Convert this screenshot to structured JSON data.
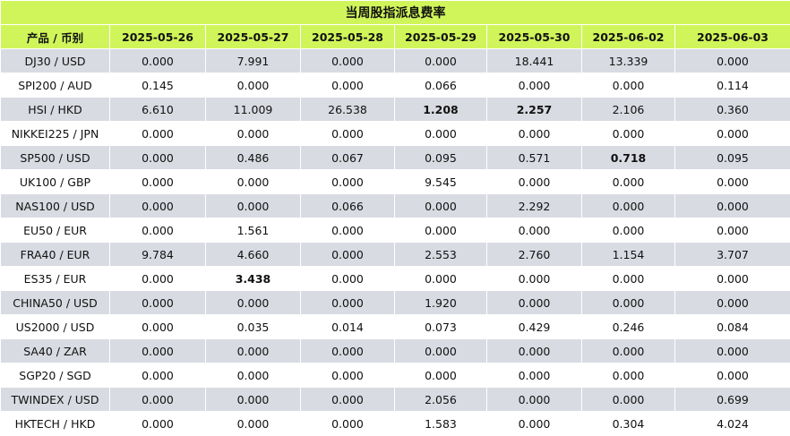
{
  "title": "当周股指派息费率",
  "header": {
    "product": "产品 / 币别",
    "dates": [
      "2025-05-26",
      "2025-05-27",
      "2025-05-28",
      "2025-05-29",
      "2025-05-30",
      "2025-06-02",
      "2025-06-03"
    ]
  },
  "rows": [
    {
      "product": "DJ30 / USD",
      "values": [
        "0.000",
        "7.991",
        "0.000",
        "0.000",
        "18.441",
        "13.339",
        "0.000"
      ],
      "bold": []
    },
    {
      "product": "SPI200 / AUD",
      "values": [
        "0.145",
        "0.000",
        "0.000",
        "0.066",
        "0.000",
        "0.000",
        "0.114"
      ],
      "bold": []
    },
    {
      "product": "HSI / HKD",
      "values": [
        "6.610",
        "11.009",
        "26.538",
        "1.208",
        "2.257",
        "2.106",
        "0.360"
      ],
      "bold": [
        3,
        4
      ]
    },
    {
      "product": "NIKKEI225 / JPN",
      "values": [
        "0.000",
        "0.000",
        "0.000",
        "0.000",
        "0.000",
        "0.000",
        "0.000"
      ],
      "bold": []
    },
    {
      "product": "SP500 / USD",
      "values": [
        "0.000",
        "0.486",
        "0.067",
        "0.095",
        "0.571",
        "0.718",
        "0.095"
      ],
      "bold": [
        5
      ]
    },
    {
      "product": "UK100 / GBP",
      "values": [
        "0.000",
        "0.000",
        "0.000",
        "9.545",
        "0.000",
        "0.000",
        "0.000"
      ],
      "bold": []
    },
    {
      "product": "NAS100 / USD",
      "values": [
        "0.000",
        "0.000",
        "0.066",
        "0.000",
        "2.292",
        "0.000",
        "0.000"
      ],
      "bold": []
    },
    {
      "product": "EU50 / EUR",
      "values": [
        "0.000",
        "1.561",
        "0.000",
        "0.000",
        "0.000",
        "0.000",
        "0.000"
      ],
      "bold": []
    },
    {
      "product": "FRA40 / EUR",
      "values": [
        "9.784",
        "4.660",
        "0.000",
        "2.553",
        "2.760",
        "1.154",
        "3.707"
      ],
      "bold": []
    },
    {
      "product": "ES35 / EUR",
      "values": [
        "0.000",
        "3.438",
        "0.000",
        "0.000",
        "0.000",
        "0.000",
        "0.000"
      ],
      "bold": [
        1
      ]
    },
    {
      "product": "CHINA50 / USD",
      "values": [
        "0.000",
        "0.000",
        "0.000",
        "1.920",
        "0.000",
        "0.000",
        "0.000"
      ],
      "bold": []
    },
    {
      "product": "US2000 / USD",
      "values": [
        "0.000",
        "0.035",
        "0.014",
        "0.073",
        "0.429",
        "0.246",
        "0.084"
      ],
      "bold": []
    },
    {
      "product": "SA40 / ZAR",
      "values": [
        "0.000",
        "0.000",
        "0.000",
        "0.000",
        "0.000",
        "0.000",
        "0.000"
      ],
      "bold": []
    },
    {
      "product": "SGP20 / SGD",
      "values": [
        "0.000",
        "0.000",
        "0.000",
        "0.000",
        "0.000",
        "0.000",
        "0.000"
      ],
      "bold": []
    },
    {
      "product": "TWINDEX / USD",
      "values": [
        "0.000",
        "0.000",
        "0.000",
        "2.056",
        "0.000",
        "0.000",
        "0.699"
      ],
      "bold": []
    },
    {
      "product": "HKTECH / HKD",
      "values": [
        "0.000",
        "0.000",
        "0.000",
        "1.583",
        "0.000",
        "0.304",
        "4.024"
      ],
      "bold": []
    }
  ]
}
